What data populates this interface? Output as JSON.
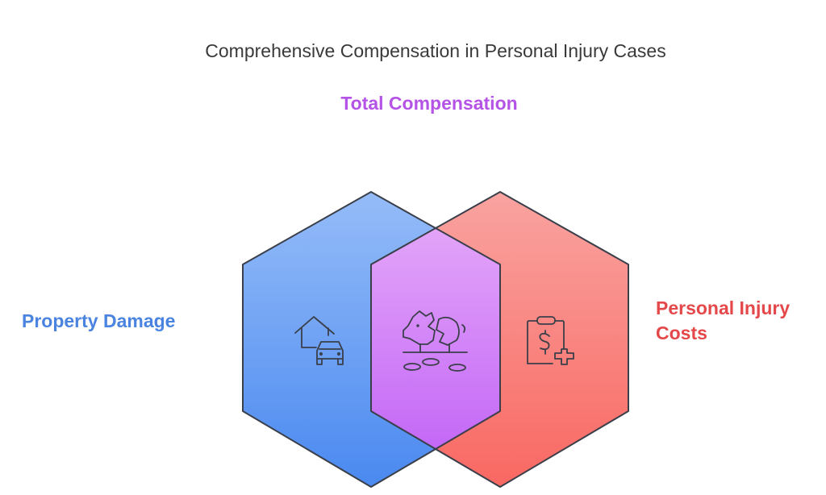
{
  "title": "Comprehensive Compensation in Personal Injury Cases",
  "sets": [
    {
      "id": "property",
      "label": "Property Damage",
      "icon": "house-car-icon",
      "color": "#4a84e0",
      "fill_top": "#95bcf8",
      "fill_bottom": "#4a89f0"
    },
    {
      "id": "injury",
      "label": "Personal Injury Costs",
      "label_lines": [
        "Personal Injury",
        "Costs"
      ],
      "icon": "clipboard-dollar-medical-icon",
      "color": "#e5484a",
      "fill_top": "#f9a3a0",
      "fill_bottom": "#f96862"
    }
  ],
  "intersection": {
    "label": "Total Compensation",
    "icon": "broken-piggy-bank-icon",
    "color": "#b453e6",
    "fill_top": "#e2a4f8",
    "fill_bottom": "#c468f7"
  },
  "outline_color": "#3a3f4a"
}
